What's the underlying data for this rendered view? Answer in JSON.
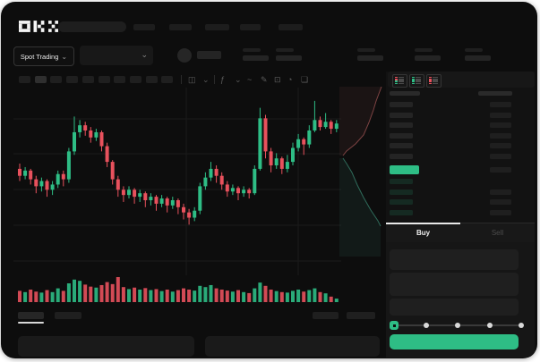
{
  "app": {
    "name": "OKX"
  },
  "colors": {
    "up": "#2ebd85",
    "down": "#e8515d",
    "accent_button": "#2ebd85",
    "price_highlight": "#2ebd85"
  },
  "header": {
    "nav_item_count": 5,
    "search_placeholder": ""
  },
  "subheader": {
    "market_mode": "Spot Trading",
    "stat_group_count": 5
  },
  "icons": {
    "chevron_down": "⌄",
    "toolbar": [
      {
        "name": "candle-chart-icon",
        "glyph": "◫"
      },
      {
        "name": "chevron-down-icon",
        "glyph": "⌄"
      },
      {
        "name": "indicators-icon",
        "glyph": "ƒ"
      },
      {
        "name": "chevron-down-icon",
        "glyph": "⌄"
      },
      {
        "name": "line-tool-icon",
        "glyph": "~"
      },
      {
        "name": "draw-tool-icon",
        "glyph": "✎"
      },
      {
        "name": "camera-icon",
        "glyph": "⊡"
      },
      {
        "name": "history-icon",
        "glyph": "◔"
      },
      {
        "name": "fullscreen-icon",
        "glyph": "❏"
      }
    ]
  },
  "toolbar": {
    "timeframe_button_count": 10,
    "active_timeframe_index": 1
  },
  "orderbook": {
    "view_modes": [
      {
        "name": "book-combined-icon",
        "rows": [
          "#e8515d",
          "#e8515d",
          "#2ebd85",
          "#2ebd85"
        ]
      },
      {
        "name": "book-bids-icon",
        "rows": [
          "#2ebd85",
          "#2ebd85",
          "#2ebd85",
          "#2ebd85"
        ]
      },
      {
        "name": "book-asks-icon",
        "rows": [
          "#e8515d",
          "#e8515d",
          "#e8515d",
          "#e8515d"
        ]
      }
    ],
    "ask_rows": 6,
    "bid_rows": 4,
    "last_price_direction": "up"
  },
  "trade_panel": {
    "buy_tab": "Buy",
    "sell_tab": "Sell",
    "input_count": 3,
    "slider_stops": 5
  },
  "chart_data": {
    "type": "candlestick",
    "title": "",
    "xlabel": "",
    "ylabel": "",
    "price_range": [
      0,
      100
    ],
    "grid": true,
    "legend": "none",
    "series_note": "unlabeled skeleton trading chart; OHLC per candle [open, close, high, low]",
    "candles": [
      [
        58,
        54,
        61,
        51
      ],
      [
        54,
        57,
        59,
        52
      ],
      [
        57,
        52,
        58,
        49
      ],
      [
        52,
        48,
        54,
        44
      ],
      [
        48,
        51,
        53,
        45
      ],
      [
        51,
        46,
        52,
        42
      ],
      [
        46,
        49,
        51,
        43
      ],
      [
        49,
        55,
        57,
        47
      ],
      [
        55,
        52,
        57,
        48
      ],
      [
        52,
        68,
        70,
        50
      ],
      [
        68,
        79,
        88,
        66
      ],
      [
        79,
        83,
        86,
        76
      ],
      [
        83,
        80,
        85,
        77
      ],
      [
        80,
        76,
        82,
        73
      ],
      [
        76,
        79,
        81,
        74
      ],
      [
        79,
        71,
        80,
        68
      ],
      [
        71,
        62,
        73,
        59
      ],
      [
        62,
        52,
        63,
        49
      ],
      [
        52,
        46,
        54,
        42
      ],
      [
        46,
        43,
        48,
        39
      ],
      [
        43,
        46,
        48,
        41
      ],
      [
        46,
        42,
        47,
        38
      ],
      [
        42,
        44,
        46,
        39
      ],
      [
        44,
        40,
        45,
        36
      ],
      [
        40,
        42,
        44,
        37
      ],
      [
        42,
        38,
        43,
        34
      ],
      [
        38,
        41,
        43,
        36
      ],
      [
        41,
        37,
        42,
        33
      ],
      [
        37,
        40,
        42,
        35
      ],
      [
        40,
        36,
        41,
        32
      ],
      [
        36,
        33,
        38,
        29
      ],
      [
        33,
        30,
        35,
        26
      ],
      [
        30,
        34,
        36,
        28
      ],
      [
        34,
        48,
        50,
        32
      ],
      [
        48,
        53,
        56,
        46
      ],
      [
        53,
        58,
        62,
        51
      ],
      [
        58,
        54,
        60,
        50
      ],
      [
        54,
        49,
        56,
        46
      ],
      [
        49,
        45,
        51,
        42
      ],
      [
        45,
        47,
        49,
        43
      ],
      [
        47,
        44,
        48,
        40
      ],
      [
        44,
        46,
        48,
        42
      ],
      [
        46,
        44,
        47,
        41
      ],
      [
        44,
        58,
        60,
        43
      ],
      [
        58,
        87,
        93,
        57
      ],
      [
        87,
        68,
        89,
        64
      ],
      [
        68,
        60,
        70,
        56
      ],
      [
        60,
        64,
        67,
        58
      ],
      [
        64,
        58,
        65,
        55
      ],
      [
        58,
        62,
        66,
        56
      ],
      [
        62,
        70,
        73,
        60
      ],
      [
        70,
        75,
        78,
        68
      ],
      [
        75,
        72,
        76,
        66
      ],
      [
        72,
        80,
        83,
        70
      ],
      [
        80,
        86,
        97,
        79
      ],
      [
        86,
        82,
        88,
        80
      ],
      [
        82,
        85,
        90,
        81
      ],
      [
        85,
        81,
        86,
        78
      ],
      [
        81,
        84,
        86,
        79
      ]
    ],
    "volumes": [
      0.45,
      0.4,
      0.5,
      0.42,
      0.38,
      0.48,
      0.4,
      0.55,
      0.45,
      0.75,
      0.9,
      0.85,
      0.7,
      0.62,
      0.58,
      0.68,
      0.8,
      0.72,
      1.0,
      0.6,
      0.52,
      0.58,
      0.5,
      0.56,
      0.48,
      0.52,
      0.44,
      0.5,
      0.42,
      0.48,
      0.55,
      0.5,
      0.46,
      0.65,
      0.6,
      0.68,
      0.55,
      0.5,
      0.46,
      0.42,
      0.48,
      0.4,
      0.36,
      0.55,
      0.78,
      0.65,
      0.5,
      0.44,
      0.4,
      0.38,
      0.45,
      0.5,
      0.42,
      0.48,
      0.55,
      0.4,
      0.35,
      0.22,
      0.14
    ],
    "depth_overlay": {
      "asks_color": "#7e4343",
      "bids_color": "#2f6b5a",
      "present": true
    }
  }
}
